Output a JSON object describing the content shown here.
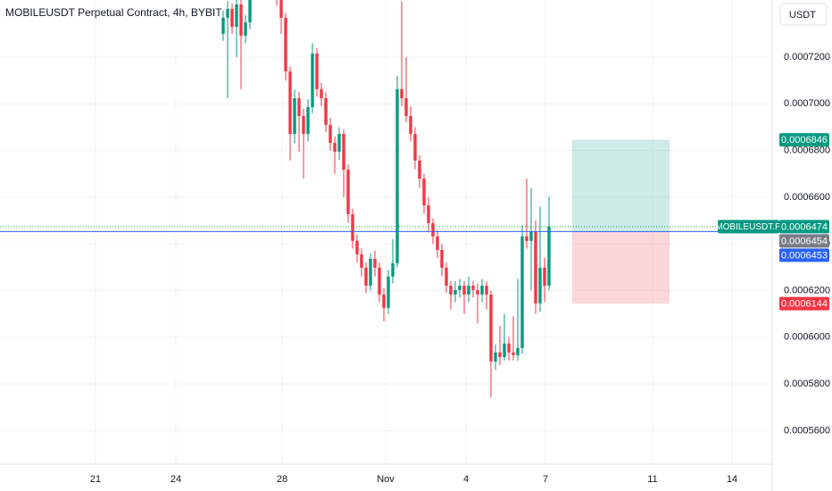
{
  "chart_data": {
    "type": "candlestick",
    "title": "MOBILEUSDT Perpetual Contract, 4h, BYBIT",
    "currency": "USDT",
    "up_color": "#089981",
    "down_color": "#f23645",
    "open": [
      0.00073,
      0.0007369,
      0.0007407,
      0.000733,
      0.0007426,
      0.0007292,
      0.0007349,
      0.00075,
      0.000756,
      0.000748,
      0.000753,
      0.00076,
      0.000754,
      0.000748,
      0.0007369,
      0.0007139,
      0.0006871,
      0.0007024,
      0.0006948,
      0.0006871,
      0.0006986,
      0.0007216,
      0.0007063,
      0.0007024,
      0.000691,
      0.0006833,
      0.0006795,
      0.0006871,
      0.0006718,
      0.0006527,
      0.0006413,
      0.0006355,
      0.0006298,
      0.0006221,
      0.0006336,
      0.0006298,
      0.0006183,
      0.0006126,
      0.000626,
      0.0006317,
      0.0007063,
      0.0007024,
      0.0006948,
      0.0006871,
      0.0006757,
      0.000668,
      0.0006565,
      0.0006489,
      0.0006432,
      0.0006374,
      0.0006298,
      0.0006221,
      0.0006183,
      0.0006202,
      0.0006221,
      0.0006183,
      0.0006221,
      0.0006202,
      0.0006183,
      0.0006221,
      0.0006183,
      0.0005896,
      0.0005935,
      0.0005915,
      0.0005973,
      0.0005935,
      0.0005923,
      0.0005954,
      0.0006432,
      0.0006413,
      0.0006451,
      0.0006145,
      0.0006298,
      0.0006221
    ],
    "high": [
      0.00074,
      0.000744,
      0.000743,
      0.0007445,
      0.000745,
      0.000738,
      0.000753,
      0.000759,
      0.00076,
      0.000756,
      0.000763,
      0.000762,
      0.000757,
      0.00075,
      0.000739,
      0.000716,
      0.000706,
      0.000705,
      0.000698,
      0.000702,
      0.000726,
      0.000724,
      0.000709,
      0.000705,
      0.000694,
      0.000686,
      0.00069,
      0.000689,
      0.000674,
      0.000655,
      0.000644,
      0.000638,
      0.000632,
      0.000636,
      0.000637,
      0.000632,
      0.000621,
      0.000629,
      0.000642,
      0.000712,
      0.000744,
      0.00072,
      0.000699,
      0.00069,
      0.000678,
      0.00067,
      0.00066,
      0.000651,
      0.000646,
      0.00064,
      0.000632,
      0.000624,
      0.000624,
      0.000625,
      0.000624,
      0.000626,
      0.000624,
      0.000623,
      0.000625,
      0.000624,
      0.00062,
      0.000597,
      0.000605,
      0.00061,
      0.0006,
      0.000609,
      0.000625,
      0.000648,
      0.000668,
      0.000664,
      0.00065,
      0.000656,
      0.000634,
      0.0006603
    ],
    "low": [
      0.000727,
      0.0007024,
      0.00073,
      0.00072,
      0.0007063,
      0.000726,
      0.000732,
      0.000747,
      0.000745,
      0.000745,
      0.00075,
      0.000751,
      0.000742,
      0.00073,
      0.00071,
      0.0006757,
      0.000683,
      0.0006795,
      0.000668,
      0.000684,
      0.000696,
      0.000703,
      0.000699,
      0.000688,
      0.00068,
      0.00067,
      0.000676,
      0.00066,
      0.000649,
      0.000638,
      0.000632,
      0.000626,
      0.000619,
      0.00062,
      0.000626,
      0.000615,
      0.0006068,
      0.00061,
      0.000623,
      0.00063,
      0.000699,
      0.000692,
      0.000684,
      0.000672,
      0.000664,
      0.000653,
      0.000645,
      0.00064,
      0.000634,
      0.000626,
      0.000619,
      0.000612,
      0.000615,
      0.000617,
      0.00061,
      0.000615,
      0.000617,
      0.000606,
      0.000615,
      0.000612,
      0.0005743,
      0.000586,
      0.000588,
      0.00059,
      0.00059,
      0.00059,
      0.00059,
      0.000593,
      0.000638,
      0.00062,
      0.00061,
      0.000611,
      0.000615,
      0.00062
    ],
    "close": [
      0.0007369,
      0.0007407,
      0.000733,
      0.0007426,
      0.0007292,
      0.0007349,
      0.00075,
      0.000756,
      0.000748,
      0.000753,
      0.00076,
      0.000754,
      0.000748,
      0.0007369,
      0.0007139,
      0.0006871,
      0.0007024,
      0.0006948,
      0.0006871,
      0.0006986,
      0.0007216,
      0.0007063,
      0.0007024,
      0.000691,
      0.0006833,
      0.0006795,
      0.0006871,
      0.0006718,
      0.0006527,
      0.0006413,
      0.0006355,
      0.0006298,
      0.0006221,
      0.0006336,
      0.0006298,
      0.0006183,
      0.0006126,
      0.000626,
      0.0006317,
      0.0007063,
      0.0007024,
      0.0006948,
      0.0006871,
      0.0006757,
      0.000668,
      0.0006565,
      0.0006489,
      0.0006432,
      0.0006374,
      0.0006298,
      0.0006221,
      0.0006183,
      0.0006202,
      0.0006221,
      0.0006183,
      0.0006221,
      0.0006202,
      0.0006183,
      0.0006221,
      0.0006183,
      0.0005896,
      0.0005935,
      0.0005915,
      0.0005973,
      0.0005935,
      0.0005923,
      0.0005954,
      0.0006432,
      0.0006413,
      0.0006451,
      0.0006145,
      0.0006298,
      0.0006221,
      0.0006474
    ],
    "xlim": [
      -50,
      123
    ],
    "xticks": [
      {
        "value": -28.6,
        "label": "21"
      },
      {
        "value": -10.6,
        "label": "24"
      },
      {
        "value": 13.2,
        "label": "28"
      },
      {
        "value": 36.4,
        "label": "Nov"
      },
      {
        "value": 54.4,
        "label": "4"
      },
      {
        "value": 72.2,
        "label": "7"
      },
      {
        "value": 96.2,
        "label": "11"
      },
      {
        "value": 114,
        "label": "14"
      }
    ],
    "ylim": [
      0.0005456,
      0.0007445
    ],
    "yticks": [
      {
        "value": 0.00056,
        "label": "0.0005600"
      },
      {
        "value": 0.00058,
        "label": "0.0005800"
      },
      {
        "value": 0.0006,
        "label": "0.0006000"
      },
      {
        "value": 0.00062,
        "label": "0.0006200"
      },
      {
        "value": 0.00064,
        "label": "0.0006400"
      },
      {
        "value": 0.00066,
        "label": "0.0006600"
      },
      {
        "value": 0.00068,
        "label": "0.0006800"
      },
      {
        "value": 0.0007,
        "label": "0.0007000"
      },
      {
        "value": 0.00072,
        "label": "0.0007200"
      }
    ],
    "grid": true,
    "last_price": {
      "name": "MOBILEUSDT.P",
      "value": 0.0006474,
      "color": "#089981"
    },
    "price_labels": [
      {
        "value": 0.0006454,
        "color": "#787b86"
      },
      {
        "value": 0.0006453,
        "color": "#2962ff"
      }
    ],
    "position": {
      "target": 0.0006846,
      "entry": 0.0006453,
      "stop": 0.0006144,
      "target_color": "#089981",
      "stop_color": "#f23645"
    }
  }
}
